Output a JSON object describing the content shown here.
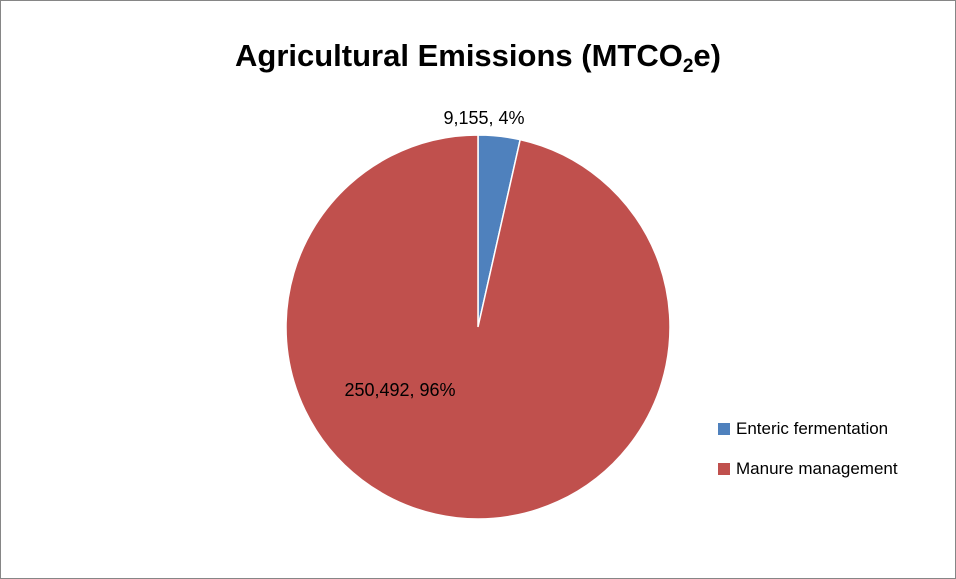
{
  "chart_data": {
    "type": "pie",
    "title_main": "Agricultural Emissions (MTCO",
    "title_sub": "2",
    "title_end": "e)",
    "slices": [
      {
        "name": "Enteric fermentation",
        "value": 9155,
        "label": "9,155, 4%",
        "color": "#4F81BD"
      },
      {
        "name": "Manure management",
        "value": 250492,
        "label": "250,492, 96%",
        "color": "#C0504D"
      }
    ],
    "legend": {
      "position": "right",
      "items": [
        "Enteric fermentation",
        "Manure management"
      ]
    },
    "start_angle_deg": 0,
    "direction": "clockwise"
  }
}
